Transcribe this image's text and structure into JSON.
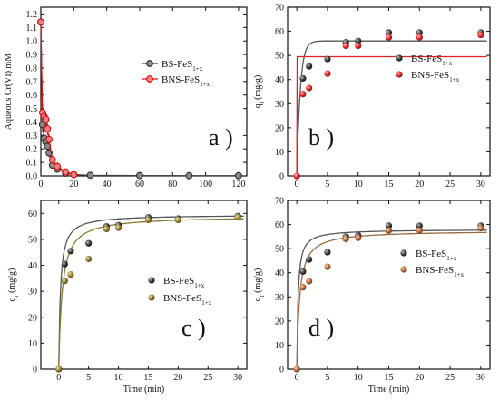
{
  "chart_data": [
    {
      "id": "a",
      "type": "scatter",
      "panel_tag": "a )",
      "xlabel": "",
      "ylabel": "Aqueous Cr(VI) mM",
      "xlim": [
        0,
        125
      ],
      "ylim": [
        0,
        1.25
      ],
      "xticks": [
        0,
        20,
        40,
        60,
        80,
        100,
        120
      ],
      "yticks": [
        0.0,
        0.1,
        0.2,
        0.3,
        0.4,
        0.5,
        0.6,
        0.7,
        0.8,
        0.9,
        1.0,
        1.1,
        1.2
      ],
      "legend_position": "right",
      "series": [
        {
          "name": "BS-FeS",
          "name_sub": "1+x",
          "color": "#404040",
          "marker": "circle-dark",
          "line": true,
          "x": [
            0,
            1,
            2,
            3,
            4,
            5,
            7,
            10,
            15,
            20,
            30,
            60,
            90,
            120
          ],
          "y": [
            1.14,
            0.38,
            0.28,
            0.25,
            0.22,
            0.17,
            0.08,
            0.05,
            0.02,
            0.01,
            0.005,
            0.003,
            0.002,
            0.002
          ],
          "err": [
            0,
            0.05,
            0.04,
            0.03,
            0.03,
            0.03,
            0.02,
            0.02,
            0.01,
            0.01,
            0,
            0,
            0,
            0
          ]
        },
        {
          "name": "BNS-FeS",
          "name_sub": "1+x",
          "color": "#e01010",
          "marker": "circle-red",
          "line": true,
          "x": [
            0,
            1,
            2,
            3,
            4,
            5,
            7,
            10,
            15,
            20
          ],
          "y": [
            1.14,
            0.47,
            0.44,
            0.42,
            0.35,
            0.27,
            0.12,
            0.07,
            0.03,
            0.01
          ],
          "err": [
            0,
            0.06,
            0.05,
            0.05,
            0.05,
            0.04,
            0.03,
            0.03,
            0.02,
            0.01
          ]
        }
      ]
    },
    {
      "id": "b",
      "type": "scatter",
      "panel_tag": "b )",
      "xlabel": "",
      "ylabel_main": "q",
      "ylabel_sub": "t",
      "ylabel_rest": " (mg/g)",
      "xlim": [
        -1.5,
        31.5
      ],
      "ylim": [
        0,
        70
      ],
      "xticks": [
        0,
        5,
        10,
        15,
        20,
        25,
        30
      ],
      "yticks": [
        0,
        10,
        20,
        30,
        40,
        50,
        60,
        70
      ],
      "legend_position": "right",
      "series": [
        {
          "name": "BS-FeS",
          "name_sub": "1+x",
          "color": "#333333",
          "marker": "sphere-dark",
          "x": [
            0,
            1,
            2,
            5,
            8,
            10,
            15,
            20,
            30
          ],
          "y": [
            0,
            40.5,
            45.5,
            48.5,
            55.5,
            56,
            59.5,
            59.5,
            59.5
          ]
        },
        {
          "name": "BNS-FeS",
          "name_sub": "1+x",
          "color": "#e83030",
          "marker": "sphere-red",
          "x": [
            0,
            1,
            2,
            5,
            8,
            10,
            15,
            20,
            30
          ],
          "y": [
            0,
            34,
            36.5,
            42.5,
            54,
            54,
            57.5,
            57.5,
            58.5
          ]
        }
      ],
      "fits": [
        {
          "kind": "pfo",
          "qe": 56,
          "k": 1.8,
          "color": "#555555"
        },
        {
          "kind": "step",
          "qe": 49.5,
          "color": "#e02020"
        }
      ]
    },
    {
      "id": "c",
      "type": "scatter",
      "panel_tag": "c )",
      "xlabel": "Time (min)",
      "ylabel_main": "q",
      "ylabel_sub": "t",
      "ylabel_rest": " (mg/g)",
      "xlim": [
        -3,
        31.5
      ],
      "ylim": [
        0,
        65
      ],
      "xticks": [
        0,
        5,
        10,
        15,
        20,
        25,
        30
      ],
      "yticks": [
        0,
        10,
        20,
        30,
        40,
        50,
        60
      ],
      "legend_position": "bottom-left",
      "series": [
        {
          "name": "BS-FeS",
          "name_sub": "1+x",
          "color": "#333333",
          "marker": "sphere-dark",
          "x": [
            0,
            1,
            2,
            5,
            8,
            10,
            15,
            20,
            30
          ],
          "y": [
            0,
            40.5,
            45.5,
            48.5,
            55,
            55.5,
            58.5,
            58,
            59
          ]
        },
        {
          "name": "BNS-FeS",
          "name_sub": "1+x",
          "color": "#9a8a40",
          "marker": "sphere-olive",
          "x": [
            0,
            1,
            2,
            5,
            8,
            10,
            15,
            20,
            30
          ],
          "y": [
            0,
            34,
            36.5,
            42.5,
            54,
            54.5,
            57.5,
            57.5,
            58.5
          ]
        }
      ],
      "fits": [
        {
          "kind": "pso",
          "qe": 59.5,
          "k": 0.06,
          "color": "#555555"
        },
        {
          "kind": "pso",
          "qe": 59,
          "k": 0.03,
          "color": "#8a7a30"
        }
      ]
    },
    {
      "id": "d",
      "type": "scatter",
      "panel_tag": "d )",
      "xlabel": "Time (min)",
      "ylabel_main": "q",
      "ylabel_sub": "t",
      "ylabel_rest": " (mg/g)",
      "xlim": [
        -1.5,
        31.5
      ],
      "ylim": [
        0,
        70
      ],
      "xticks": [
        0,
        5,
        10,
        15,
        20,
        25,
        30
      ],
      "yticks": [
        0,
        10,
        20,
        30,
        40,
        50,
        60,
        70
      ],
      "legend_position": "right",
      "series": [
        {
          "name": "BS-FeS",
          "name_sub": "1+x",
          "color": "#333333",
          "marker": "sphere-dark",
          "x": [
            0,
            1,
            2,
            5,
            8,
            10,
            15,
            20,
            30
          ],
          "y": [
            0,
            40.5,
            45.5,
            48.5,
            55,
            55.5,
            59.5,
            59.5,
            59.5
          ]
        },
        {
          "name": "BNS-FeS",
          "name_sub": "1+x",
          "color": "#c07040",
          "marker": "sphere-orange",
          "x": [
            0,
            1,
            2,
            5,
            8,
            10,
            15,
            20,
            30
          ],
          "y": [
            0,
            34,
            36.5,
            42.5,
            54,
            54.5,
            57.5,
            57.5,
            58.5
          ]
        }
      ],
      "fits": [
        {
          "kind": "elovich",
          "qe": 58,
          "k": 0.09,
          "color": "#555555"
        },
        {
          "kind": "elovich",
          "qe": 57.5,
          "k": 0.04,
          "color": "#9a6a40"
        }
      ]
    }
  ]
}
